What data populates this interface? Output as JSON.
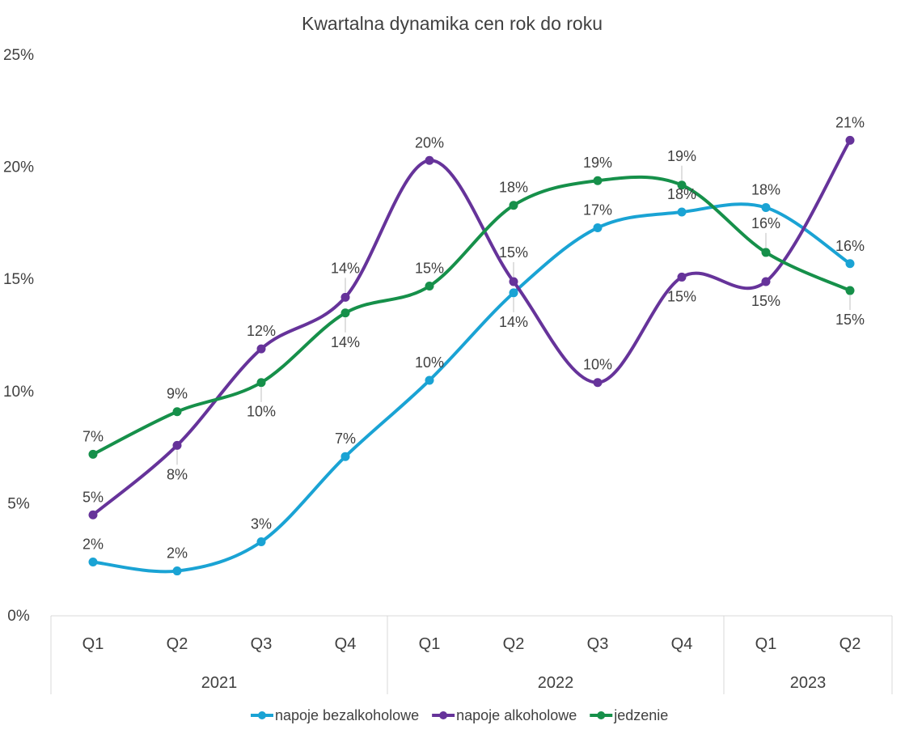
{
  "chart_data": {
    "type": "line",
    "title": "Kwartalna dynamika cen rok do roku",
    "categories": [
      "Q1",
      "Q2",
      "Q3",
      "Q4",
      "Q1",
      "Q2",
      "Q3",
      "Q4",
      "Q1",
      "Q2"
    ],
    "category_groups": [
      {
        "label": "2021",
        "count": 4
      },
      {
        "label": "2022",
        "count": 4
      },
      {
        "label": "2023",
        "count": 2
      }
    ],
    "ylim": [
      0,
      25
    ],
    "yticks": [
      0,
      5,
      10,
      15,
      20,
      25
    ],
    "yticks_labels": [
      "0%",
      "5%",
      "10%",
      "15%",
      "20%",
      "25%"
    ],
    "series": [
      {
        "name": "napoje bezalkoholowe",
        "color": "#1aa3d4",
        "values": [
          2.4,
          2.0,
          3.3,
          7.1,
          10.5,
          14.4,
          17.3,
          18.0,
          18.2,
          15.7
        ],
        "labels": [
          "2%",
          "2%",
          "3%",
          "7%",
          "10%",
          "14%",
          "17%",
          "18%",
          "18%",
          "16%"
        ]
      },
      {
        "name": "napoje alkoholowe",
        "color": "#66339a",
        "values": [
          4.5,
          7.6,
          11.9,
          14.2,
          20.3,
          14.9,
          10.4,
          15.1,
          14.9,
          21.2
        ],
        "labels": [
          "5%",
          "8%",
          "12%",
          "14%",
          "20%",
          "15%",
          "10%",
          "15%",
          "15%",
          "21%"
        ]
      },
      {
        "name": "jedzenie",
        "color": "#16904a",
        "values": [
          7.2,
          9.1,
          10.4,
          13.5,
          14.7,
          18.3,
          19.4,
          19.2,
          16.2,
          14.5
        ],
        "labels": [
          "7%",
          "9%",
          "10%",
          "14%",
          "15%",
          "18%",
          "19%",
          "19%",
          "16%",
          "15%"
        ]
      }
    ],
    "legend": "bottom"
  }
}
